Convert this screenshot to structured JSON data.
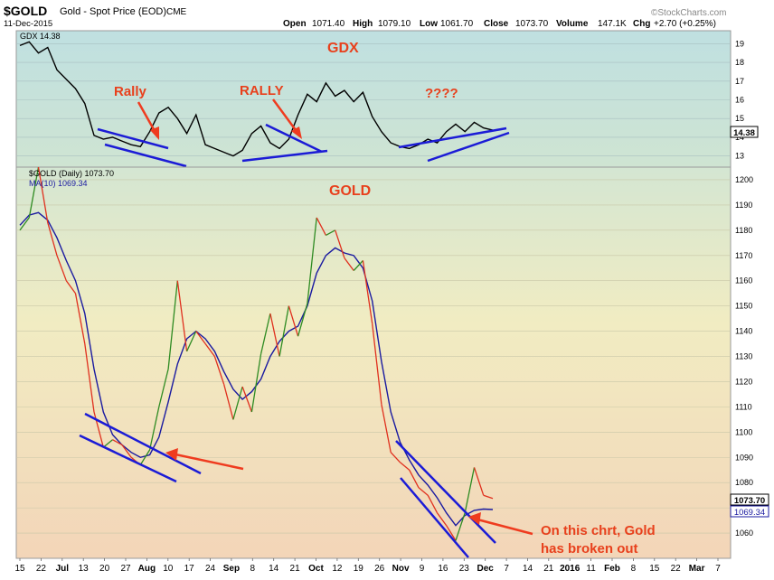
{
  "header": {
    "symbol": "$GOLD",
    "description": "Gold - Spot Price (EOD)",
    "exchange": "CME",
    "date": "11-Dec-2015",
    "open_label": "Open",
    "open": "1071.40",
    "high_label": "High",
    "high": "1079.10",
    "low_label": "Low",
    "low": "1061.70",
    "close_label": "Close",
    "close": "1073.70",
    "volume_label": "Volume",
    "volume": "147.1K",
    "chg_label": "Chg",
    "chg": "+2.70 (+0.25%)",
    "brand": "©StockCharts.com"
  },
  "colors": {
    "gold_price": "#e0301e",
    "gold_up": "#2e8b22",
    "ma": "#1a1aa0",
    "trendline": "#1b1bd6",
    "arrow": "#ef3b1f",
    "annotation": "#e8401c",
    "gdx_line": "#000000"
  },
  "chart_data": [
    {
      "type": "line",
      "name": "GDX panel",
      "series": [
        {
          "name": "GDX 14.38",
          "x": [
            "Jun 15",
            "Jun 19",
            "Jun 24",
            "Jun 29",
            "Jul 2",
            "Jul 7",
            "Jul 10",
            "Jul 13",
            "Jul 16",
            "Jul 20",
            "Jul 23",
            "Jul 27",
            "Jul 30",
            "Aug 3",
            "Aug 6",
            "Aug 10",
            "Aug 13",
            "Aug 17",
            "Aug 20",
            "Aug 24",
            "Aug 27",
            "Aug 31",
            "Sep 3",
            "Sep 8",
            "Sep 11",
            "Sep 14",
            "Sep 17",
            "Sep 21",
            "Sep 24",
            "Sep 28",
            "Oct 1",
            "Oct 5",
            "Oct 8",
            "Oct 12",
            "Oct 15",
            "Oct 19",
            "Oct 22",
            "Oct 26",
            "Oct 29",
            "Nov 2",
            "Nov 5",
            "Nov 9",
            "Nov 12",
            "Nov 16",
            "Nov 19",
            "Nov 23",
            "Nov 26",
            "Nov 30",
            "Dec 3",
            "Dec 7",
            "Dec 9",
            "Dec 11"
          ],
          "values": [
            18.9,
            19.1,
            18.5,
            18.8,
            17.6,
            17.1,
            16.6,
            15.8,
            14.1,
            13.9,
            14.0,
            13.8,
            13.6,
            13.5,
            14.3,
            15.3,
            15.6,
            15.0,
            14.2,
            15.2,
            13.6,
            13.4,
            13.2,
            13.0,
            13.3,
            14.2,
            14.6,
            13.7,
            13.4,
            13.9,
            15.2,
            16.3,
            15.9,
            16.9,
            16.2,
            16.5,
            15.9,
            16.4,
            15.1,
            14.3,
            13.7,
            13.5,
            13.4,
            13.6,
            13.9,
            13.7,
            14.3,
            14.7,
            14.3,
            14.8,
            14.5,
            14.38
          ]
        }
      ],
      "ylim": [
        12.5,
        19.5
      ],
      "y_ticks": [
        13,
        14,
        15,
        16,
        17,
        18,
        19
      ],
      "last_value_label": "14.38",
      "annotations": [
        "GDX",
        "Rally",
        "RALLY",
        "????"
      ]
    },
    {
      "type": "line",
      "name": "GOLD panel",
      "series": [
        {
          "name": "$GOLD (Daily) 1073.70",
          "x": [
            "Jun 15",
            "Jun 19",
            "Jun 24",
            "Jun 29",
            "Jul 2",
            "Jul 7",
            "Jul 10",
            "Jul 13",
            "Jul 16",
            "Jul 20",
            "Jul 23",
            "Jul 27",
            "Jul 30",
            "Aug 3",
            "Aug 6",
            "Aug 10",
            "Aug 13",
            "Aug 17",
            "Aug 20",
            "Aug 24",
            "Aug 27",
            "Aug 31",
            "Sep 3",
            "Sep 8",
            "Sep 11",
            "Sep 14",
            "Sep 17",
            "Sep 21",
            "Sep 24",
            "Sep 28",
            "Oct 1",
            "Oct 5",
            "Oct 8",
            "Oct 12",
            "Oct 15",
            "Oct 19",
            "Oct 22",
            "Oct 26",
            "Oct 29",
            "Nov 2",
            "Nov 5",
            "Nov 9",
            "Nov 12",
            "Nov 16",
            "Nov 19",
            "Nov 23",
            "Nov 26",
            "Nov 30",
            "Dec 3",
            "Dec 7",
            "Dec 9",
            "Dec 11"
          ],
          "values": [
            1180,
            1185,
            1205,
            1183,
            1170,
            1160,
            1155,
            1135,
            1108,
            1094,
            1097,
            1095,
            1090,
            1087,
            1093,
            1110,
            1125,
            1160,
            1132,
            1140,
            1135,
            1130,
            1119,
            1105,
            1118,
            1108,
            1131,
            1147,
            1130,
            1150,
            1138,
            1151,
            1185,
            1178,
            1180,
            1169,
            1164,
            1168,
            1143,
            1111,
            1092,
            1088,
            1085,
            1078,
            1075,
            1068,
            1063,
            1057,
            1068,
            1086,
            1075,
            1073.7
          ]
        },
        {
          "name": "MA(10) 1069.34",
          "x": [
            "Jun 15",
            "Jun 19",
            "Jun 24",
            "Jun 29",
            "Jul 2",
            "Jul 7",
            "Jul 10",
            "Jul 13",
            "Jul 16",
            "Jul 20",
            "Jul 23",
            "Jul 27",
            "Jul 30",
            "Aug 3",
            "Aug 6",
            "Aug 10",
            "Aug 13",
            "Aug 17",
            "Aug 20",
            "Aug 24",
            "Aug 27",
            "Aug 31",
            "Sep 3",
            "Sep 8",
            "Sep 11",
            "Sep 14",
            "Sep 17",
            "Sep 21",
            "Sep 24",
            "Sep 28",
            "Oct 1",
            "Oct 5",
            "Oct 8",
            "Oct 12",
            "Oct 15",
            "Oct 19",
            "Oct 22",
            "Oct 26",
            "Oct 29",
            "Nov 2",
            "Nov 5",
            "Nov 9",
            "Nov 12",
            "Nov 16",
            "Nov 19",
            "Nov 23",
            "Nov 26",
            "Nov 30",
            "Dec 3",
            "Dec 7",
            "Dec 9",
            "Dec 11"
          ],
          "values": [
            1182,
            1186,
            1187,
            1184,
            1177,
            1168,
            1160,
            1147,
            1125,
            1108,
            1099,
            1095,
            1092,
            1090,
            1091,
            1098,
            1112,
            1127,
            1137,
            1140,
            1137,
            1132,
            1124,
            1117,
            1113,
            1116,
            1121,
            1130,
            1136,
            1140,
            1142,
            1150,
            1163,
            1170,
            1173,
            1171,
            1170,
            1165,
            1152,
            1128,
            1108,
            1096,
            1089,
            1083,
            1079,
            1074,
            1068,
            1063,
            1067,
            1069,
            1069.5,
            1069.34
          ]
        }
      ],
      "ylim": [
        1050,
        1205
      ],
      "y_ticks": [
        1060,
        1070,
        1080,
        1090,
        1100,
        1110,
        1120,
        1130,
        1140,
        1150,
        1160,
        1170,
        1180,
        1190,
        1200
      ],
      "last_value_label": "1073.70",
      "ma_value_label": "1069.34",
      "annotations": [
        "GOLD",
        "On this chrt, Gold",
        "has broken out"
      ]
    }
  ],
  "x_axis_labels": [
    "15",
    "22",
    "Jul",
    "13",
    "20",
    "27",
    "Aug",
    "10",
    "17",
    "24",
    "Sep",
    "8",
    "14",
    "21",
    "Oct",
    "12",
    "19",
    "26",
    "Nov",
    "9",
    "16",
    "23",
    "Dec",
    "7",
    "14",
    "21",
    "2016",
    "11",
    "Feb",
    "8",
    "15",
    "22",
    "Mar",
    "7"
  ],
  "x_axis_bold": [
    "Jul",
    "Aug",
    "Sep",
    "Oct",
    "Nov",
    "Dec",
    "2016",
    "Feb",
    "Mar"
  ]
}
